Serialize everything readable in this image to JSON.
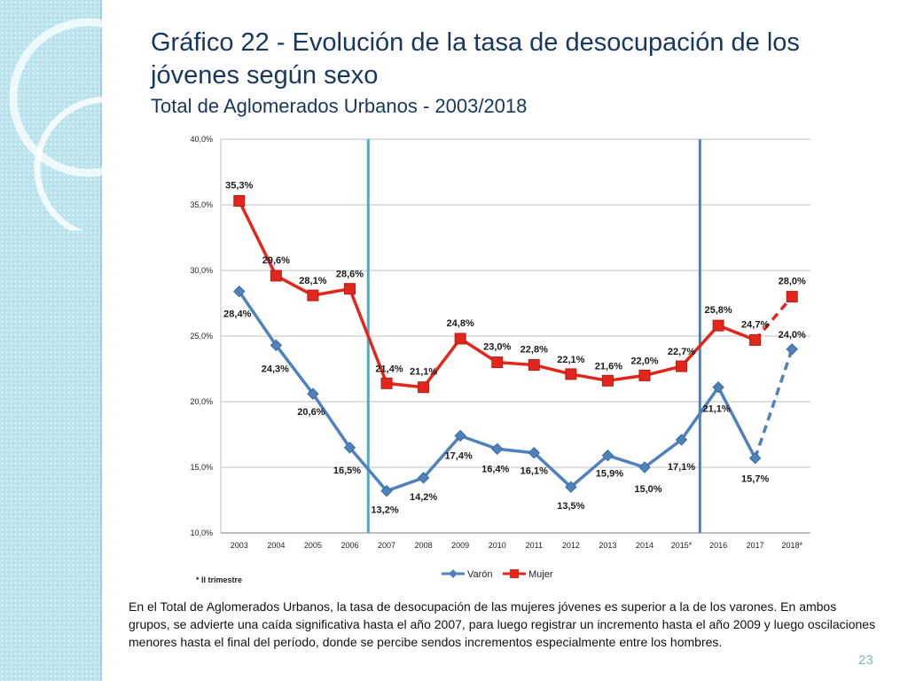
{
  "title": {
    "line1": "Gráfico 22 - Evolución de la tasa de desocupación de los jóvenes según sexo",
    "line2": "Total de Aglomerados Urbanos - 2003/2018"
  },
  "chart_data": {
    "type": "line",
    "categories": [
      "2003",
      "2004",
      "2005",
      "2006",
      "2007",
      "2008",
      "2009",
      "2010",
      "2011",
      "2012",
      "2013",
      "2014",
      "2015*",
      "2016",
      "2017",
      "2018*"
    ],
    "ylim": [
      10,
      40
    ],
    "yticks": [
      "10,0%",
      "15,0%",
      "20,0%",
      "25,0%",
      "30,0%",
      "35,0%",
      "40,0%"
    ],
    "ytick_values": [
      10,
      15,
      20,
      25,
      30,
      35,
      40
    ],
    "grid": true,
    "legend": "bottom",
    "vertical_markers_after": [
      "2006",
      "2015*"
    ],
    "series": [
      {
        "name": "Varón",
        "color": "#4f81bd",
        "marker": "diamond",
        "values": [
          28.4,
          24.3,
          20.6,
          16.5,
          13.2,
          14.2,
          17.4,
          16.4,
          16.1,
          13.5,
          15.9,
          15.0,
          17.1,
          21.1,
          15.7,
          24.0
        ],
        "labels": [
          "28,4%",
          "24,3%",
          "20,6%",
          "16,5%",
          "13,2%",
          "14,2%",
          "17,4%",
          "16,4%",
          "16,1%",
          "13,5%",
          "15,9%",
          "15,0%",
          "17,1%",
          "21,1%",
          "15,7%",
          "24,0%"
        ],
        "dashed_last_segment": true
      },
      {
        "name": "Mujer",
        "color": "#e3261c",
        "marker": "square",
        "values": [
          35.3,
          29.6,
          28.1,
          28.6,
          21.4,
          21.1,
          24.8,
          23.0,
          22.8,
          22.1,
          21.6,
          22.0,
          22.7,
          25.8,
          24.7,
          28.0
        ],
        "labels": [
          "35,3%",
          "29,6%",
          "28,1%",
          "28,6%",
          "21,4%",
          "21,1%",
          "24,8%",
          "23,0%",
          "22,8%",
          "22,1%",
          "21,6%",
          "22,0%",
          "22,7%",
          "25,8%",
          "24,7%",
          "28,0%"
        ],
        "dashed_last_segment": true
      }
    ]
  },
  "footnote": "* II trimestre",
  "body_text": "En el Total de Aglomerados Urbanos,  la tasa de desocupación de las mujeres jóvenes es superior a la de los varones. En ambos grupos, se advierte una caída significativa hasta el año 2007,  para luego registrar un incremento hasta el año 2009 y luego oscilaciones menores hasta el final del período, donde se percibe sendos incrementos especialmente entre los hombres.",
  "page_number": "23"
}
